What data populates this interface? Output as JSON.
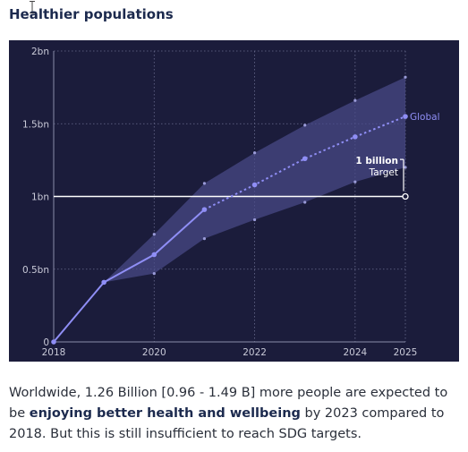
{
  "page": {
    "title": "Healthier populations"
  },
  "caption": {
    "part1": "Worldwide, 1.26 Billion [0.96 - 1.49 B] more people are expected to be ",
    "bold": "enjoying better health and wellbeing",
    "part2": " by 2023 compared to 2018. But this is still insufficient to reach SDG targets."
  },
  "icons": {
    "cursor": "text-cursor-icon"
  },
  "colors": {
    "panel_bg": "#1b1c3b",
    "series": "#8f8ef5",
    "band": "#4a4c8a",
    "target": "#ffffff",
    "grid": "#6a6c8e",
    "tick_text": "#c9cad8"
  },
  "chart_data": {
    "type": "line",
    "grid": true,
    "xlim": [
      2018,
      2025
    ],
    "ylim": [
      0,
      2
    ],
    "x_ticks": [
      {
        "value": 2018,
        "label": "2018"
      },
      {
        "value": 2020,
        "label": "2020"
      },
      {
        "value": 2022,
        "label": "2022"
      },
      {
        "value": 2024,
        "label": "2024"
      },
      {
        "value": 2025,
        "label": "2025"
      }
    ],
    "y_ticks": [
      {
        "value": 0,
        "label": "0"
      },
      {
        "value": 0.5,
        "label": "0.5bn"
      },
      {
        "value": 1,
        "label": "1bn"
      },
      {
        "value": 1.5,
        "label": "1.5bn"
      },
      {
        "value": 2,
        "label": "2bn"
      }
    ],
    "series": [
      {
        "name": "Global",
        "x": [
          2018,
          2019,
          2020,
          2021,
          2022,
          2023,
          2024,
          2025
        ],
        "values": [
          0,
          0.41,
          0.6,
          0.91,
          1.08,
          1.26,
          1.41,
          1.55
        ],
        "lower": [
          0,
          0.41,
          0.47,
          0.71,
          0.84,
          0.96,
          1.1,
          1.2
        ],
        "upper": [
          0,
          0.41,
          0.74,
          1.09,
          1.3,
          1.49,
          1.66,
          1.82
        ],
        "solid_until": 2021
      }
    ],
    "target": {
      "value": 1,
      "label_value": "1 billion",
      "label_text": "Target"
    }
  }
}
